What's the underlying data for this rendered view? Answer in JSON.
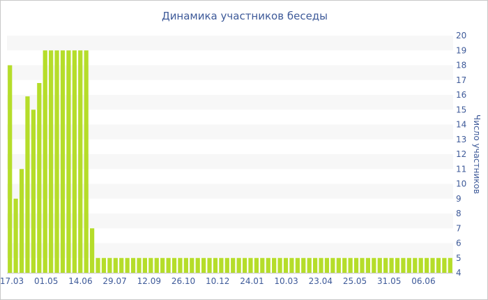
{
  "chart_data": {
    "type": "bar",
    "title": "Динамика участников беседы",
    "xlabel": "",
    "ylabel": "Число участников",
    "ylim": [
      4,
      20
    ],
    "yticks": [
      4,
      5,
      6,
      7,
      8,
      9,
      10,
      11,
      12,
      13,
      14,
      15,
      16,
      17,
      18,
      19,
      20
    ],
    "xtick_labels": [
      "17.03",
      "01.05",
      "14.06",
      "29.07",
      "12.09",
      "26.10",
      "10.12",
      "24.01",
      "10.03",
      "23.04",
      "25.05",
      "31.05",
      "06.06"
    ],
    "grid": "horizontal bands",
    "bar_color": "#b5dd2a",
    "band_color": "#f7f7f7",
    "text_color": "#3e5a99",
    "values": [
      18,
      9,
      11,
      15.9,
      15,
      16.8,
      19,
      19,
      19,
      19,
      19,
      19,
      19,
      19,
      7,
      5,
      5,
      5,
      5,
      5,
      5,
      5,
      5,
      5,
      5,
      5,
      5,
      5,
      5,
      5,
      5,
      5,
      5,
      5,
      5,
      5,
      5,
      5,
      5,
      5,
      5,
      5,
      5,
      5,
      5,
      5,
      5,
      5,
      5,
      5,
      5,
      5,
      5,
      5,
      5,
      5,
      5,
      5,
      5,
      5,
      5,
      5,
      5,
      5,
      5,
      5,
      5,
      5,
      5,
      5,
      5,
      5,
      5,
      5,
      5,
      5
    ]
  }
}
